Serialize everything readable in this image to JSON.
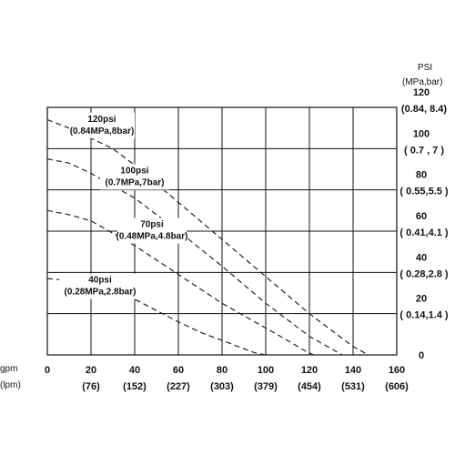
{
  "chart_data": {
    "type": "line",
    "x_units": {
      "primary": "gpm",
      "secondary": "(lpm)"
    },
    "y_units": {
      "primary": "PSI",
      "secondary": "(MPa,bar)"
    },
    "x_ticks": [
      {
        "value": 0,
        "primary": "0",
        "secondary": ""
      },
      {
        "value": 20,
        "primary": "20",
        "secondary": "(76)"
      },
      {
        "value": 40,
        "primary": "40",
        "secondary": "(152)"
      },
      {
        "value": 60,
        "primary": "60",
        "secondary": "(227)"
      },
      {
        "value": 80,
        "primary": "80",
        "secondary": "(303)"
      },
      {
        "value": 100,
        "primary": "100",
        "secondary": "(379)"
      },
      {
        "value": 120,
        "primary": "120",
        "secondary": "(454)"
      },
      {
        "value": 140,
        "primary": "140",
        "secondary": "(531)"
      },
      {
        "value": 160,
        "primary": "160",
        "secondary": "(606)"
      }
    ],
    "y_ticks": [
      {
        "value": 0,
        "primary": "0",
        "secondary": ""
      },
      {
        "value": 20,
        "primary": "20",
        "secondary": "( 0.14,1.4 )"
      },
      {
        "value": 40,
        "primary": "40",
        "secondary": "( 0.28,2.8 )"
      },
      {
        "value": 60,
        "primary": "60",
        "secondary": "( 0.41,4.1 )"
      },
      {
        "value": 80,
        "primary": "80",
        "secondary": "( 0.55,5.5 )"
      },
      {
        "value": 100,
        "primary": "100",
        "secondary": "( 0.7 , 7 )"
      },
      {
        "value": 120,
        "primary": "120",
        "secondary": "(0.84, 8.4)"
      }
    ],
    "xlim": [
      0,
      160
    ],
    "ylim": [
      0,
      120
    ],
    "grid": true,
    "series": [
      {
        "name_line1": "120psi",
        "name_line2": "(0.84MPa,8bar)",
        "x": [
          0,
          10,
          20,
          30,
          40,
          60,
          80,
          100,
          120,
          140,
          147
        ],
        "y": [
          114,
          110,
          105,
          100,
          92,
          74,
          56,
          38,
          20,
          4,
          0
        ]
      },
      {
        "name_line1": "100psi",
        "name_line2": "(0.7MPa,7bar)",
        "x": [
          0,
          10,
          20,
          30,
          40,
          60,
          80,
          100,
          120,
          130,
          135
        ],
        "y": [
          95,
          93,
          88,
          82,
          76,
          60,
          43,
          25,
          9,
          3,
          0
        ]
      },
      {
        "name_line1": "70psi",
        "name_line2": "(0.48MPa,4.8bar)",
        "x": [
          0,
          10,
          20,
          30,
          40,
          60,
          80,
          100,
          110,
          118,
          122
        ],
        "y": [
          70,
          68,
          65,
          59,
          53,
          39,
          25,
          13,
          7,
          2,
          0
        ]
      },
      {
        "name_line1": "40psi",
        "name_line2": "(0.28MPa,2.8bar)",
        "x": [
          0,
          10,
          20,
          30,
          40,
          60,
          70,
          80,
          90,
          95,
          100
        ],
        "y": [
          37,
          36,
          34,
          31,
          27,
          16,
          11,
          7,
          3,
          1,
          0
        ]
      }
    ]
  }
}
